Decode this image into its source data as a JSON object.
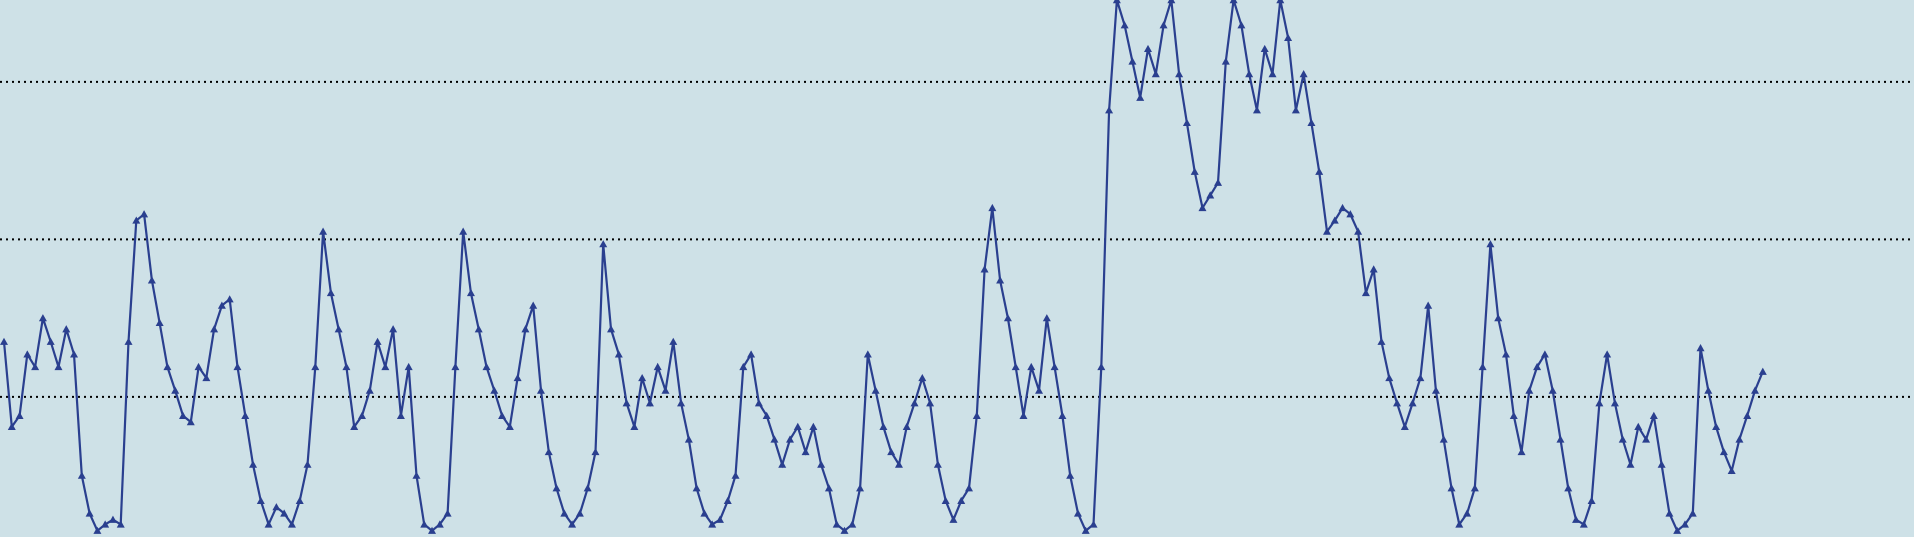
{
  "chart_data": {
    "type": "line",
    "color": "#2a3f8f",
    "background": "#cee1e7",
    "grid": true,
    "ylim": [
      0.11,
      3.52
    ],
    "yticks": [
      1,
      2,
      3
    ],
    "values": [
      1.35,
      0.81,
      0.88,
      1.27,
      1.19,
      1.5,
      1.35,
      1.19,
      1.43,
      1.27,
      0.5,
      0.26,
      0.15,
      0.19,
      0.22,
      0.19,
      1.35,
      2.12,
      2.16,
      1.74,
      1.47,
      1.19,
      1.04,
      0.88,
      0.84,
      1.19,
      1.12,
      1.43,
      1.58,
      1.62,
      1.19,
      0.88,
      0.57,
      0.34,
      0.19,
      0.3,
      0.26,
      0.19,
      0.34,
      0.57,
      1.19,
      2.05,
      1.66,
      1.43,
      1.19,
      0.81,
      0.88,
      1.04,
      1.35,
      1.19,
      1.43,
      0.88,
      1.19,
      0.5,
      0.19,
      0.15,
      0.19,
      0.26,
      1.19,
      2.05,
      1.66,
      1.43,
      1.19,
      1.04,
      0.88,
      0.81,
      1.12,
      1.43,
      1.58,
      1.04,
      0.65,
      0.42,
      0.26,
      0.19,
      0.26,
      0.42,
      0.65,
      1.97,
      1.43,
      1.27,
      0.96,
      0.81,
      1.12,
      0.96,
      1.19,
      1.04,
      1.35,
      0.96,
      0.73,
      0.42,
      0.26,
      0.19,
      0.22,
      0.34,
      0.5,
      1.19,
      1.27,
      0.96,
      0.88,
      0.73,
      0.57,
      0.73,
      0.81,
      0.65,
      0.81,
      0.57,
      0.42,
      0.19,
      0.15,
      0.19,
      0.42,
      1.27,
      1.04,
      0.81,
      0.65,
      0.57,
      0.81,
      0.96,
      1.12,
      0.96,
      0.57,
      0.34,
      0.22,
      0.34,
      0.42,
      0.88,
      1.81,
      2.2,
      1.74,
      1.5,
      1.19,
      0.88,
      1.19,
      1.04,
      1.5,
      1.19,
      0.88,
      0.5,
      0.26,
      0.15,
      0.19,
      1.19,
      2.82,
      3.52,
      3.36,
      3.13,
      2.9,
      3.21,
      3.05,
      3.36,
      3.52,
      3.05,
      2.74,
      2.43,
      2.2,
      2.28,
      2.36,
      3.13,
      3.52,
      3.36,
      3.05,
      2.82,
      3.21,
      3.05,
      3.52,
      3.28,
      2.82,
      3.05,
      2.74,
      2.43,
      2.05,
      2.12,
      2.2,
      2.16,
      2.05,
      1.66,
      1.81,
      1.35,
      1.12,
      0.96,
      0.81,
      0.96,
      1.12,
      1.58,
      1.04,
      0.73,
      0.42,
      0.19,
      0.26,
      0.42,
      1.19,
      1.97,
      1.5,
      1.27,
      0.88,
      0.65,
      1.04,
      1.19,
      1.27,
      1.04,
      0.73,
      0.42,
      0.22,
      0.19,
      0.34,
      0.96,
      1.27,
      0.96,
      0.73,
      0.57,
      0.81,
      0.73,
      0.88,
      0.57,
      0.26,
      0.15,
      0.19,
      0.26,
      1.31,
      1.04,
      0.81,
      0.65,
      0.53,
      0.73,
      0.88,
      1.04,
      1.16
    ]
  }
}
